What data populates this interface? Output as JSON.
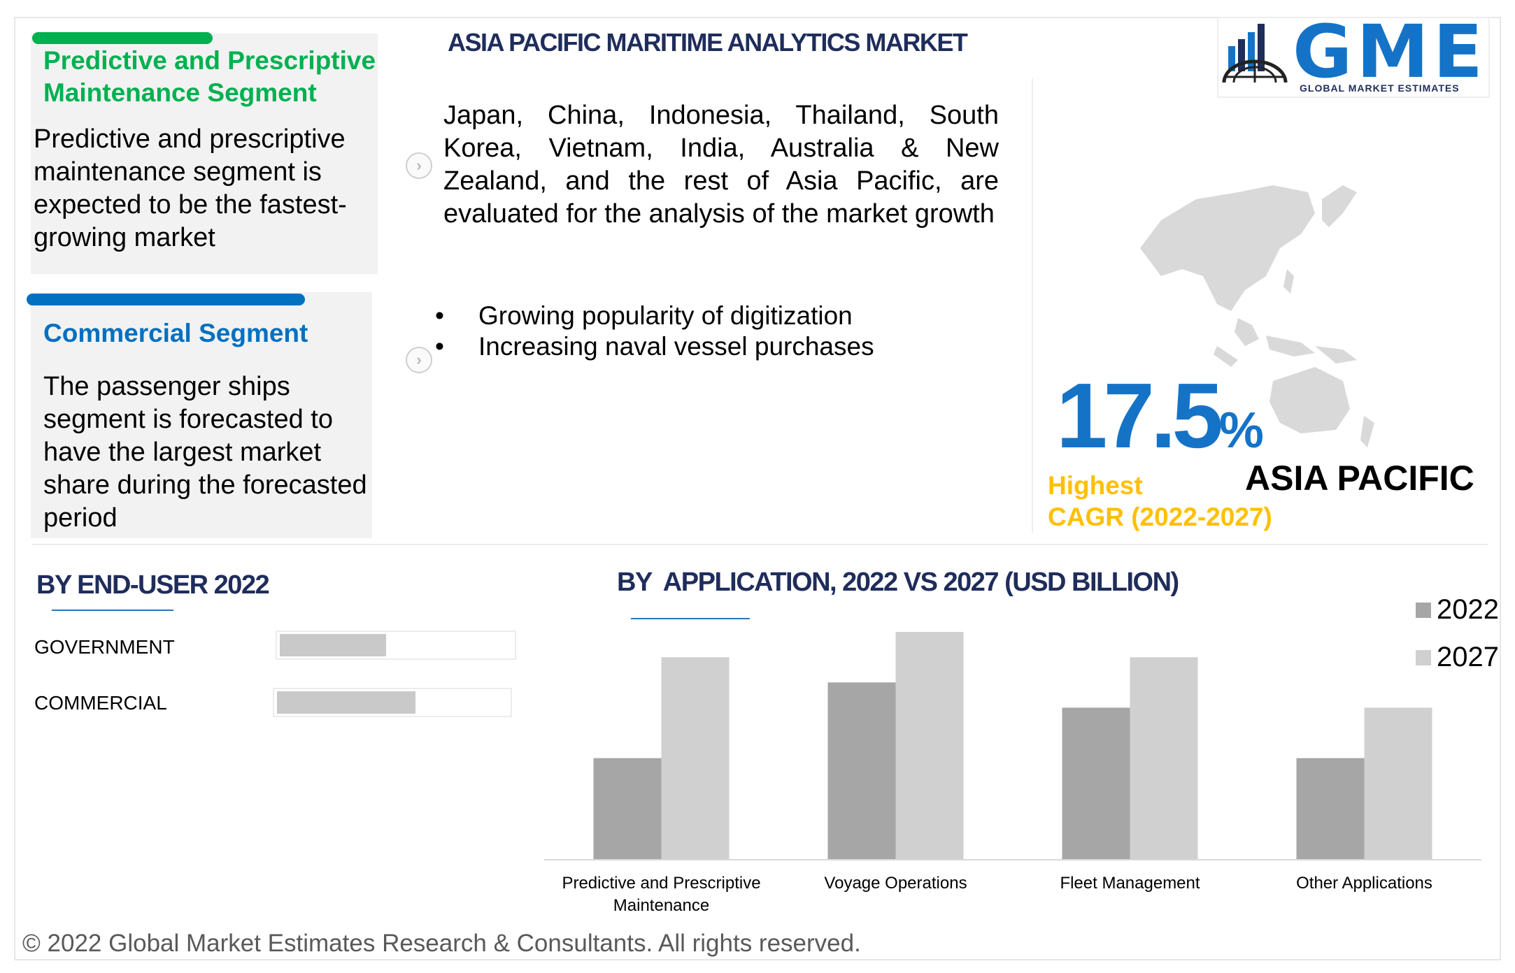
{
  "header": {
    "title": "ASIA PACIFIC MARITIME ANALYTICS MARKET",
    "logo_text": "GME",
    "logo_subtext": "GLOBAL MARKET ESTIMATES"
  },
  "cards": {
    "predictive": {
      "title_line1": "Predictive and Prescriptive",
      "title_line2": "Maintenance Segment",
      "body": "Predictive and prescriptive maintenance segment is expected to be the fastest-growing market",
      "accent": "#00b050"
    },
    "commercial": {
      "title": "Commercial Segment",
      "body": "The passenger ships segment is forecasted to have the largest market share during the forecasted period",
      "accent": "#0070c0"
    }
  },
  "analysis": {
    "paragraph": "Japan, China, Indonesia, Thailand, South Korea, Vietnam, India, Australia & New Zealand, and the rest of Asia Pacific, are evaluated for the analysis of the market growth",
    "bullet_glyph": "•",
    "bullets": [
      "Growing popularity of digitization",
      "Increasing naval vessel purchases"
    ]
  },
  "highlight": {
    "cagr_value": "17.5",
    "cagr_unit": "%",
    "label_line1": "Highest",
    "label_line2": "CAGR (2022-2027)",
    "region": "ASIA PACIFIC",
    "value_color": "#1573c7",
    "label_color": "#ffc000"
  },
  "end_user": {
    "title": "BY END-USER 2022",
    "items": [
      {
        "label": "GOVERNMENT",
        "share": 0.46
      },
      {
        "label": "COMMERCIAL",
        "share": 0.6
      }
    ]
  },
  "chart_data": {
    "type": "bar",
    "title": "BY  APPLICATION, 2022 VS 2027 (USD BILLION)",
    "categories": [
      "Predictive and Prescriptive Maintenance",
      "Voyage Operations",
      "Fleet Management",
      "Other Applications"
    ],
    "series": [
      {
        "name": "2022",
        "values": [
          2.0,
          3.5,
          3.0,
          2.0
        ],
        "color": "#a6a6a6"
      },
      {
        "name": "2027",
        "values": [
          4.0,
          4.5,
          4.0,
          3.0
        ],
        "color": "#d0d0d0"
      }
    ],
    "ylim": [
      0,
      5
    ],
    "grid": false,
    "legend": "top-right",
    "xlabel": "",
    "ylabel": ""
  },
  "footer": {
    "text": "© 2022 Global Market Estimates Research & Consultants. All rights reserved."
  }
}
